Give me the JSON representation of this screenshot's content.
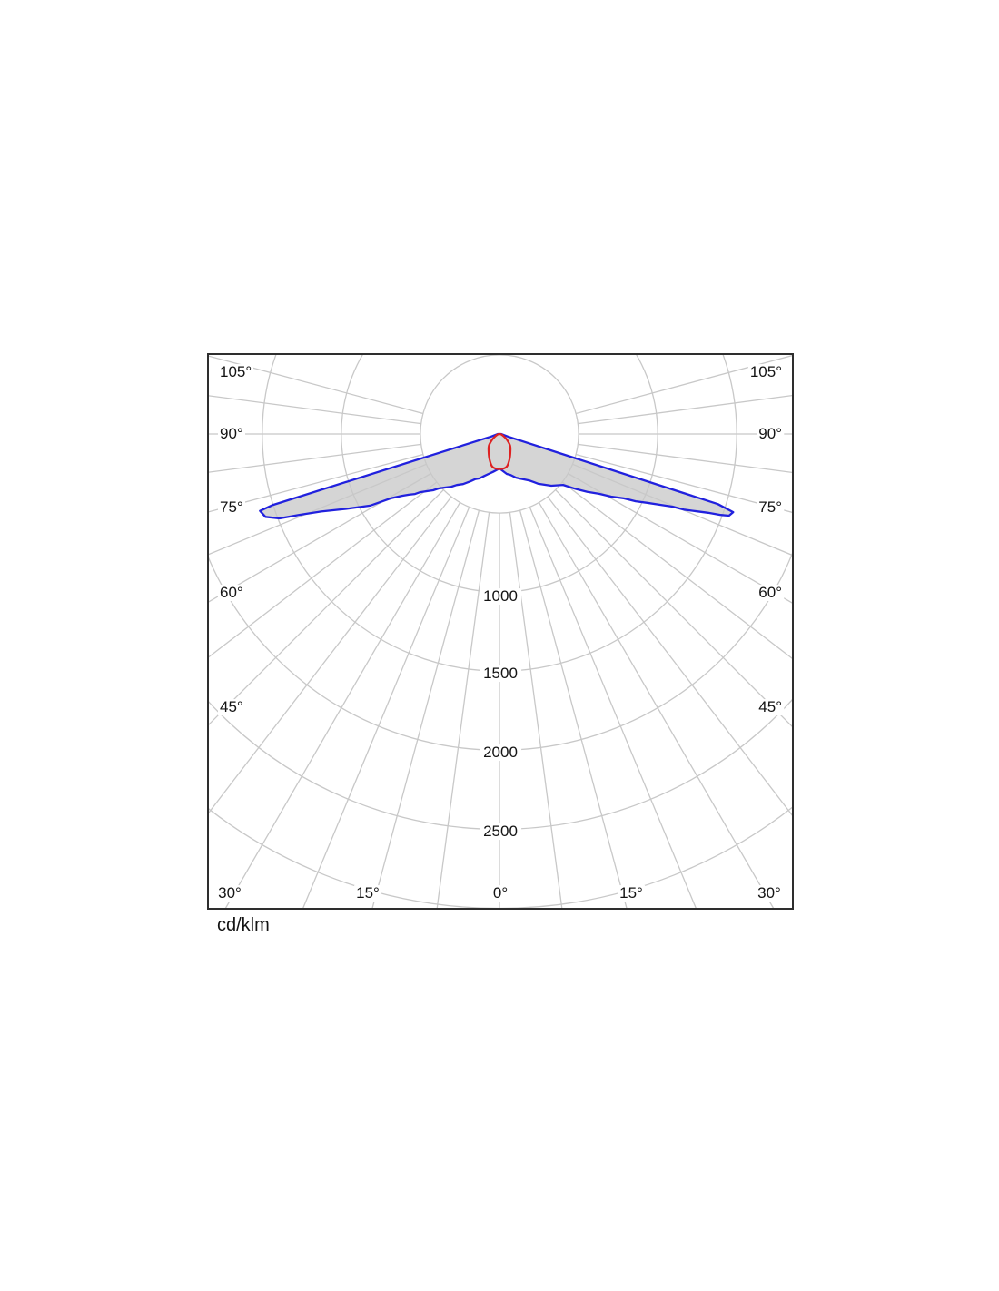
{
  "unit_label": "cd/klm",
  "chart_data": {
    "type": "polar_intensity_diagram",
    "unit": "cd/klm",
    "background": "#ffffff",
    "grid_color": "#c8c8c8",
    "border_color": "#2e2e2e",
    "radial_axis": {
      "ticks": [
        500,
        1000,
        1500,
        2000,
        2500,
        3000
      ],
      "labeled_ticks": [
        "1000",
        "1500",
        "2000",
        "2500"
      ],
      "max": 3000
    },
    "angular_axis": {
      "grid_step_deg": 7.5,
      "labels_left": [
        "105°",
        "90°",
        "75°",
        "60°",
        "45°"
      ],
      "labels_bottom": [
        "30°",
        "15°",
        "0°",
        "15°",
        "30°"
      ],
      "labels_right": [
        "45°",
        "60°",
        "75°",
        "90°",
        "105°"
      ]
    },
    "series": [
      {
        "name": "blue_curve",
        "color": "#2121de",
        "fill_color": "#d5d5d5",
        "points_deg_cd": [
          [
            -90,
            10
          ],
          [
            -73,
            55
          ],
          [
            -72.6,
            1500
          ],
          [
            -72.2,
            1590
          ],
          [
            -70.5,
            1570
          ],
          [
            -69,
            1490
          ],
          [
            -68,
            1365
          ],
          [
            -66.5,
            1230
          ],
          [
            -64,
            1080
          ],
          [
            -61,
            935
          ],
          [
            -59.4,
            800
          ],
          [
            -57.6,
            730
          ],
          [
            -56.2,
            690
          ],
          [
            -54.6,
            655
          ],
          [
            -53.7,
            622
          ],
          [
            -51.8,
            585
          ],
          [
            -49.7,
            550
          ],
          [
            -48.2,
            517
          ],
          [
            -45.5,
            483
          ],
          [
            -42.4,
            452
          ],
          [
            -40,
            421
          ],
          [
            -36,
            392
          ],
          [
            -31.6,
            352
          ],
          [
            -28.4,
            325
          ],
          [
            -24.2,
            308
          ],
          [
            -20,
            283
          ],
          [
            -15.3,
            262
          ],
          [
            -9.5,
            243
          ],
          [
            0,
            218
          ],
          [
            10.3,
            257
          ],
          [
            15,
            268
          ],
          [
            20.6,
            295
          ],
          [
            25,
            312
          ],
          [
            29.2,
            330
          ],
          [
            33,
            352
          ],
          [
            35.6,
            375
          ],
          [
            38,
            400
          ],
          [
            45,
            463
          ],
          [
            51.3,
            515
          ],
          [
            54.1,
            590
          ],
          [
            56.6,
            665
          ],
          [
            59,
            735
          ],
          [
            60.7,
            810
          ],
          [
            62.6,
            885
          ],
          [
            63.7,
            960
          ],
          [
            65,
            1030
          ],
          [
            66.2,
            1110
          ],
          [
            67.2,
            1185
          ],
          [
            67.7,
            1260
          ],
          [
            68.6,
            1340
          ],
          [
            69.3,
            1410
          ],
          [
            69.9,
            1490
          ],
          [
            70.4,
            1540
          ],
          [
            71.5,
            1558
          ],
          [
            72.2,
            1450
          ],
          [
            73,
            55
          ],
          [
            90,
            10
          ]
        ]
      },
      {
        "name": "red_curve",
        "color": "#de2121",
        "fill_color": null,
        "points_deg_cd": [
          [
            -88,
            2
          ],
          [
            -75,
            12
          ],
          [
            -62,
            30
          ],
          [
            -52,
            60
          ],
          [
            -42,
            100
          ],
          [
            -32,
            130
          ],
          [
            -22,
            170
          ],
          [
            -12,
            213
          ],
          [
            0,
            222
          ],
          [
            12,
            213
          ],
          [
            22,
            170
          ],
          [
            32,
            130
          ],
          [
            42,
            100
          ],
          [
            52,
            60
          ],
          [
            62,
            30
          ],
          [
            75,
            12
          ],
          [
            88,
            2
          ]
        ]
      }
    ]
  }
}
